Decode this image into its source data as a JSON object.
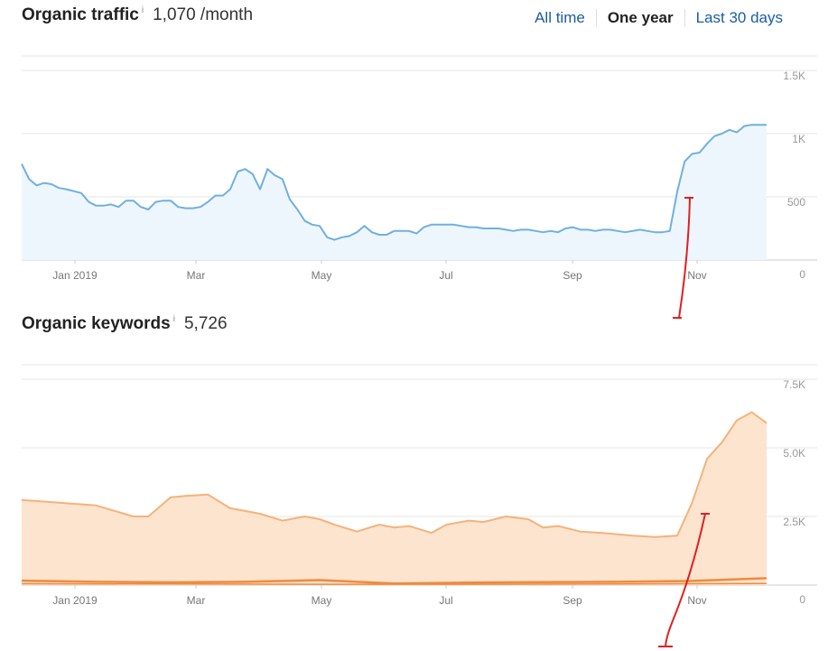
{
  "traffic": {
    "title": "Organic traffic",
    "info_icon": "i",
    "value": "1,070 /month"
  },
  "range_tabs": [
    {
      "label": "All time",
      "active": false
    },
    {
      "label": "One year",
      "active": true
    },
    {
      "label": "Last 30 days",
      "active": false
    }
  ],
  "keywords": {
    "title": "Organic keywords",
    "info_icon": "i",
    "value": "5,726"
  },
  "colors": {
    "traffic_line": "#6fb0e0",
    "traffic_fill": "#eef6fd",
    "kw_line": "#f5b27a",
    "kw_fill": "#fde4cf",
    "kw_minor": "#f08a3c",
    "annotation": "#e02020",
    "grid": "#e6e6e6"
  },
  "chart_data": [
    {
      "type": "area",
      "title": "Organic traffic",
      "x_tick_labels": [
        "Jan 2019",
        "Mar",
        "May",
        "Jul",
        "Sep",
        "Nov"
      ],
      "y_tick_labels": [
        "0",
        "500",
        "1K",
        "1.5K"
      ],
      "ylim": [
        0,
        1500
      ],
      "xlim": [
        0,
        100
      ],
      "grid": true,
      "series": [
        {
          "x": [
            0,
            1,
            2,
            3,
            4,
            5,
            6,
            7,
            8,
            9,
            10,
            11,
            12,
            13,
            14,
            15,
            16,
            17,
            18,
            19,
            20,
            21,
            22,
            23,
            24,
            25,
            26,
            27,
            28,
            29,
            30,
            31,
            32,
            33,
            34,
            35,
            36,
            37,
            38,
            39,
            40,
            41,
            42,
            43,
            44,
            45,
            46,
            47,
            48,
            49,
            50,
            51,
            52,
            53,
            54,
            55,
            56,
            57,
            58,
            59,
            60,
            61,
            62,
            63,
            64,
            65,
            66,
            67,
            68,
            69,
            70,
            71,
            72,
            73,
            74,
            75,
            76,
            77,
            78,
            79,
            80,
            81,
            82,
            83,
            84,
            85,
            86,
            87,
            88,
            89,
            90,
            91,
            92,
            93,
            94,
            95,
            96,
            97,
            98,
            99,
            100
          ],
          "values": [
            760,
            640,
            590,
            610,
            600,
            570,
            560,
            545,
            530,
            460,
            430,
            430,
            440,
            420,
            470,
            470,
            420,
            400,
            460,
            470,
            470,
            420,
            410,
            410,
            420,
            460,
            510,
            510,
            560,
            700,
            720,
            680,
            560,
            720,
            670,
            640,
            480,
            400,
            310,
            280,
            270,
            180,
            160,
            180,
            190,
            220,
            270,
            220,
            200,
            200,
            230,
            230,
            230,
            210,
            260,
            280,
            280,
            280,
            280,
            270,
            260,
            260,
            250,
            250,
            250,
            240,
            230,
            240,
            240,
            230,
            220,
            230,
            220,
            250,
            260,
            240,
            240,
            230,
            240,
            240,
            230,
            220,
            230,
            240,
            230,
            220,
            220,
            230,
            540,
            780,
            840,
            850,
            920,
            980,
            1000,
            1030,
            1010,
            1060,
            1070,
            1070,
            1070
          ]
        }
      ]
    },
    {
      "type": "area",
      "title": "Organic keywords",
      "x_tick_labels": [
        "Jan 2019",
        "Mar",
        "May",
        "Jul",
        "Sep",
        "Nov"
      ],
      "y_tick_labels": [
        "0",
        "2.5K",
        "5.0K",
        "7.5K"
      ],
      "ylim": [
        0,
        7500
      ],
      "xlim": [
        0,
        100
      ],
      "grid": true,
      "series": [
        {
          "x": [
            0,
            5,
            10,
            15,
            17,
            20,
            22,
            25,
            28,
            30,
            32,
            35,
            38,
            40,
            42,
            45,
            48,
            50,
            52,
            55,
            57,
            60,
            62,
            65,
            68,
            70,
            72,
            75,
            78,
            80,
            82,
            85,
            88,
            90,
            92,
            94,
            96,
            98,
            100
          ],
          "values": [
            3100,
            3000,
            2900,
            2500,
            2500,
            3200,
            3250,
            3300,
            2800,
            2700,
            2600,
            2350,
            2500,
            2400,
            2200,
            1950,
            2200,
            2100,
            2150,
            1900,
            2200,
            2350,
            2300,
            2500,
            2400,
            2100,
            2150,
            1950,
            1900,
            1850,
            1800,
            1750,
            1800,
            3000,
            4600,
            5200,
            6000,
            6300,
            5900
          ]
        },
        {
          "x": [
            0,
            10,
            20,
            30,
            40,
            50,
            60,
            70,
            80,
            90,
            95,
            100
          ],
          "values": [
            160,
            120,
            100,
            120,
            180,
            60,
            90,
            110,
            120,
            150,
            200,
            250
          ]
        },
        {
          "x": [
            0,
            20,
            40,
            60,
            80,
            100
          ],
          "values": [
            50,
            40,
            30,
            30,
            40,
            60
          ]
        }
      ]
    }
  ]
}
